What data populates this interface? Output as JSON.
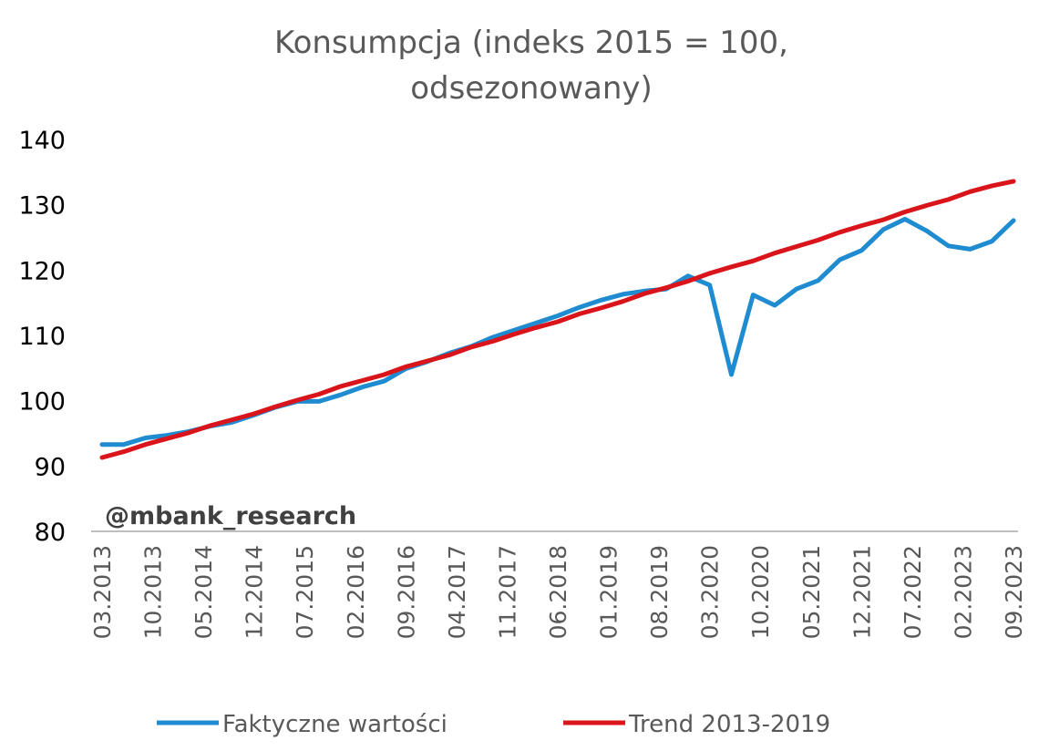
{
  "chart_data": {
    "type": "line",
    "title": "Konsumpcja (indeks 2015 = 100, odsezonowany)",
    "title_lines": [
      "Konsumpcja (indeks 2015 = 100,",
      "odsezonowany)"
    ],
    "watermark": "@mbank_research",
    "xlabel": "",
    "ylabel": "",
    "ylim": [
      80,
      140
    ],
    "yticks": [
      80,
      90,
      100,
      110,
      120,
      130,
      140
    ],
    "xtick_labels": [
      "03.2013",
      "10.2013",
      "05.2014",
      "12.2014",
      "07.2015",
      "02.2016",
      "09.2016",
      "04.2017",
      "11.2017",
      "06.2018",
      "01.2019",
      "08.2019",
      "03.2020",
      "10.2020",
      "05.2021",
      "12.2021",
      "07.2022",
      "02.2023",
      "09.2023"
    ],
    "grid": false,
    "legend_position": "bottom",
    "x": [
      "03.2013",
      "06.2013",
      "09.2013",
      "12.2013",
      "03.2014",
      "06.2014",
      "09.2014",
      "12.2014",
      "03.2015",
      "06.2015",
      "09.2015",
      "12.2015",
      "03.2016",
      "06.2016",
      "09.2016",
      "12.2016",
      "03.2017",
      "06.2017",
      "09.2017",
      "12.2017",
      "03.2018",
      "06.2018",
      "09.2018",
      "12.2018",
      "03.2019",
      "06.2019",
      "09.2019",
      "12.2019",
      "03.2020",
      "06.2020",
      "09.2020",
      "12.2020",
      "03.2021",
      "06.2021",
      "09.2021",
      "12.2021",
      "03.2022",
      "06.2022",
      "09.2022",
      "12.2022",
      "03.2023",
      "06.2023",
      "09.2023"
    ],
    "series": [
      {
        "name": "Faktyczne wartości",
        "color": "#1f8bd0",
        "values": [
          93.3,
          93.3,
          94.3,
          94.7,
          95.3,
          96.1,
          96.7,
          97.8,
          99.0,
          99.9,
          99.9,
          100.9,
          102.1,
          103.0,
          104.9,
          106.0,
          107.3,
          108.3,
          109.7,
          110.8,
          111.9,
          113.0,
          114.3,
          115.4,
          116.3,
          116.8,
          117.1,
          119.1,
          117.7,
          104.0,
          116.2,
          114.6,
          117.1,
          118.4,
          121.6,
          123.0,
          126.2,
          127.8,
          126.0,
          123.7,
          123.2,
          124.4,
          127.6
        ]
      },
      {
        "name": "Trend 2013-2019",
        "color": "#d9151b",
        "values": [
          91.3,
          92.2,
          93.3,
          94.2,
          95.1,
          96.2,
          97.1,
          98.0,
          99.1,
          100.1,
          101.0,
          102.2,
          103.1,
          104.0,
          105.2,
          106.1,
          107.0,
          108.2,
          109.1,
          110.2,
          111.2,
          112.1,
          113.3,
          114.2,
          115.2,
          116.4,
          117.3,
          118.3,
          119.5,
          120.5,
          121.4,
          122.6,
          123.6,
          124.6,
          125.8,
          126.8,
          127.7,
          128.9,
          129.9,
          130.8,
          132.0,
          132.9,
          133.6
        ]
      }
    ]
  }
}
